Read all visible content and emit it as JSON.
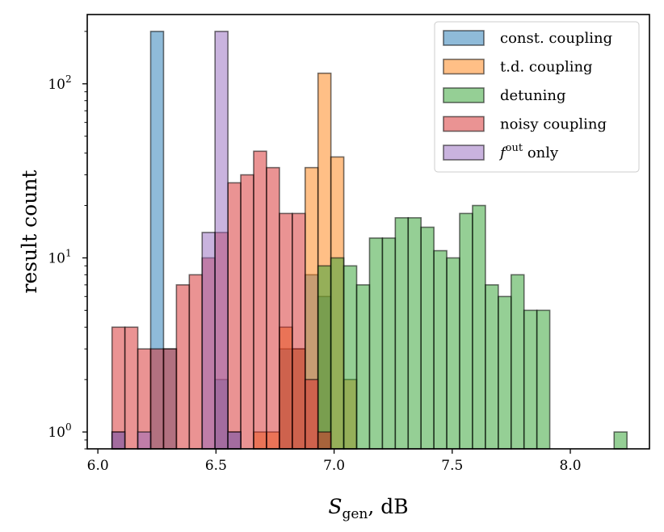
{
  "chart_data": {
    "type": "bar",
    "title": "",
    "xlabel": "S_gen, dB",
    "xlabel_main": "S",
    "xlabel_sub": "gen",
    "xlabel_rest": ", dB",
    "ylabel": "result count",
    "y_scale": "log",
    "xlim": [
      5.955,
      8.335
    ],
    "ylim": [
      0.8,
      250
    ],
    "x_ticks": [
      6.0,
      6.5,
      7.0,
      7.5,
      8.0
    ],
    "x_tick_labels": [
      "6.0",
      "6.5",
      "7.0",
      "7.5",
      "8.0"
    ],
    "y_ticks": [
      1,
      10,
      100
    ],
    "y_tick_base": "10",
    "y_tick_exponents": [
      "0",
      "1",
      "2"
    ],
    "bin_width": 0.0545,
    "grid": false,
    "legend_position": "top-right",
    "series": [
      {
        "name": "const. coupling",
        "color": "#1f77b4",
        "bins": [
          {
            "x": 6.06,
            "count": 1
          },
          {
            "x": 6.2235,
            "count": 200
          },
          {
            "x": 6.278,
            "count": 3
          },
          {
            "x": 6.496,
            "count": 2
          },
          {
            "x": 6.5505,
            "count": 1
          },
          {
            "x": 6.7685,
            "count": 3
          },
          {
            "x": 6.823,
            "count": 3
          },
          {
            "x": 6.8775,
            "count": 8
          },
          {
            "x": 6.932,
            "count": 6
          }
        ]
      },
      {
        "name": "t.d. coupling",
        "color": "#ff7f0e",
        "bins": [
          {
            "x": 6.6595,
            "count": 1
          },
          {
            "x": 6.714,
            "count": 1
          },
          {
            "x": 6.7685,
            "count": 4
          },
          {
            "x": 6.823,
            "count": 3
          },
          {
            "x": 6.8775,
            "count": 33
          },
          {
            "x": 6.932,
            "count": 115
          },
          {
            "x": 6.9865,
            "count": 38
          },
          {
            "x": 7.041,
            "count": 2
          }
        ]
      },
      {
        "name": "detuning",
        "color": "#2ca02c",
        "bins": [
          {
            "x": 6.932,
            "count": 9
          },
          {
            "x": 6.9865,
            "count": 10
          },
          {
            "x": 7.041,
            "count": 9
          },
          {
            "x": 7.0955,
            "count": 7
          },
          {
            "x": 7.15,
            "count": 13
          },
          {
            "x": 7.2045,
            "count": 13
          },
          {
            "x": 7.259,
            "count": 17
          },
          {
            "x": 7.3135,
            "count": 17
          },
          {
            "x": 7.368,
            "count": 15
          },
          {
            "x": 7.4225,
            "count": 11
          },
          {
            "x": 7.477,
            "count": 10
          },
          {
            "x": 7.5315,
            "count": 18
          },
          {
            "x": 7.586,
            "count": 20
          },
          {
            "x": 7.6405,
            "count": 7
          },
          {
            "x": 7.695,
            "count": 6
          },
          {
            "x": 7.7495,
            "count": 8
          },
          {
            "x": 7.804,
            "count": 5
          },
          {
            "x": 7.8585,
            "count": 5
          },
          {
            "x": 8.1854,
            "count": 1
          }
        ]
      },
      {
        "name": "noisy coupling",
        "color": "#d62728",
        "bins": [
          {
            "x": 6.06,
            "count": 4
          },
          {
            "x": 6.1145,
            "count": 4
          },
          {
            "x": 6.169,
            "count": 3
          },
          {
            "x": 6.2235,
            "count": 3
          },
          {
            "x": 6.278,
            "count": 3
          },
          {
            "x": 6.3325,
            "count": 7
          },
          {
            "x": 6.387,
            "count": 8
          },
          {
            "x": 6.4415,
            "count": 10
          },
          {
            "x": 6.496,
            "count": 14
          },
          {
            "x": 6.5505,
            "count": 27
          },
          {
            "x": 6.605,
            "count": 30
          },
          {
            "x": 6.6595,
            "count": 41
          },
          {
            "x": 6.714,
            "count": 33
          },
          {
            "x": 6.7685,
            "count": 18
          },
          {
            "x": 6.823,
            "count": 18
          },
          {
            "x": 6.8775,
            "count": 2
          },
          {
            "x": 6.932,
            "count": 1
          }
        ]
      },
      {
        "name": "f^out only",
        "label_main": "f",
        "label_sup": "out",
        "label_rest": " only",
        "color": "#9467bd",
        "bins": [
          {
            "x": 6.06,
            "count": 1
          },
          {
            "x": 6.169,
            "count": 1
          },
          {
            "x": 6.4415,
            "count": 14
          },
          {
            "x": 6.496,
            "count": 200
          },
          {
            "x": 6.5505,
            "count": 1
          }
        ]
      }
    ]
  }
}
